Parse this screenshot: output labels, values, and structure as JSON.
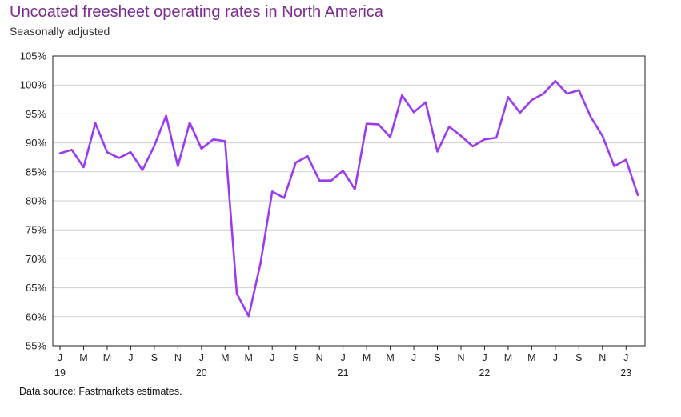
{
  "title": "Uncoated freesheet operating rates in North America",
  "subtitle": "Seasonally adjusted",
  "source": "Data source: Fastmarkets estimates.",
  "chart_data": {
    "type": "line",
    "ylim": [
      55,
      105
    ],
    "yticks": [
      55,
      60,
      65,
      70,
      75,
      80,
      85,
      90,
      95,
      100,
      105
    ],
    "ytick_labels": [
      "55%",
      "60%",
      "65%",
      "70%",
      "75%",
      "80%",
      "85%",
      "90%",
      "95%",
      "100%",
      "105%"
    ],
    "grid": true,
    "line_color": "#9b3bf0",
    "x_month_labels": [
      "J",
      "M",
      "M",
      "J",
      "S",
      "N",
      "J",
      "M",
      "M",
      "J",
      "S",
      "N",
      "J",
      "M",
      "M",
      "J",
      "S",
      "N",
      "J",
      "M",
      "M",
      "J",
      "S",
      "N",
      "J"
    ],
    "x_year_labels": [
      {
        "label": "19",
        "tick": 0
      },
      {
        "label": "20",
        "tick": 6
      },
      {
        "label": "21",
        "tick": 12
      },
      {
        "label": "22",
        "tick": 18
      },
      {
        "label": "23",
        "tick": 24
      }
    ],
    "x": [
      "2019-01",
      "2019-02",
      "2019-03",
      "2019-04",
      "2019-05",
      "2019-06",
      "2019-07",
      "2019-08",
      "2019-09",
      "2019-10",
      "2019-11",
      "2019-12",
      "2020-01",
      "2020-02",
      "2020-03",
      "2020-04",
      "2020-05",
      "2020-06",
      "2020-07",
      "2020-08",
      "2020-09",
      "2020-10",
      "2020-11",
      "2020-12",
      "2021-01",
      "2021-02",
      "2021-03",
      "2021-04",
      "2021-05",
      "2021-06",
      "2021-07",
      "2021-08",
      "2021-09",
      "2021-10",
      "2021-11",
      "2021-12",
      "2022-01",
      "2022-02",
      "2022-03",
      "2022-04",
      "2022-05",
      "2022-06",
      "2022-07",
      "2022-08",
      "2022-09",
      "2022-10",
      "2022-11",
      "2022-12",
      "2023-01",
      "2023-02"
    ],
    "series": [
      {
        "values": [
          88.2,
          88.8,
          85.8,
          93.4,
          88.4,
          87.4,
          88.4,
          85.3,
          89.5,
          94.7,
          86.0,
          93.5,
          89.0,
          90.6,
          90.3,
          64.0,
          60.1,
          69.2,
          81.6,
          80.5,
          86.6,
          87.7,
          83.5,
          83.5,
          85.2,
          82.0,
          93.3,
          93.2,
          91.0,
          98.2,
          95.3,
          97.0,
          88.5,
          92.8,
          91.2,
          89.4,
          90.6,
          90.9,
          97.9,
          95.2,
          97.4,
          98.5,
          100.7,
          98.5,
          99.1,
          94.5,
          91.2,
          86.0,
          87.1,
          81.0
        ]
      }
    ]
  }
}
